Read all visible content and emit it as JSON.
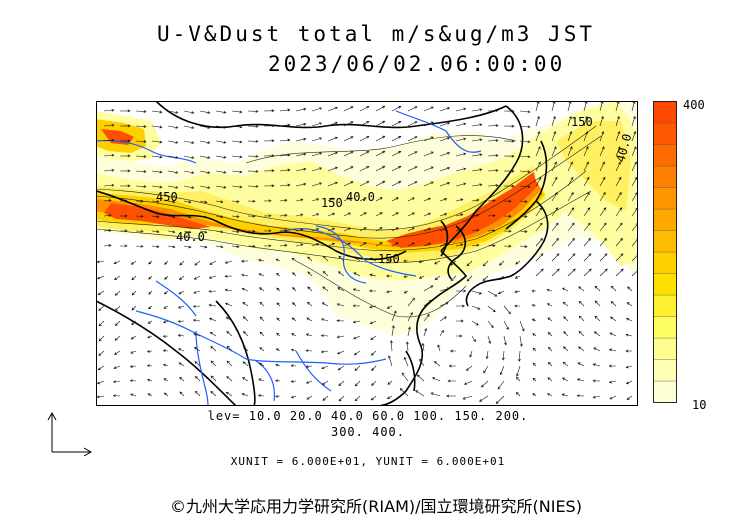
{
  "title": {
    "line1": "U-V&Dust total m/s&ug/m3 JST",
    "line2": "2023/06/02.06:00:00"
  },
  "colorbar": {
    "max_label": "400",
    "min_label": "10",
    "colors": [
      "#fefed4",
      "#fefeb4",
      "#fefe90",
      "#fefe60",
      "#fef030",
      "#fee000",
      "#fed000",
      "#febc00",
      "#fea800",
      "#fe9400",
      "#fe8000",
      "#fe6c00",
      "#fe5800",
      "#fe4800"
    ]
  },
  "contour_labels": [
    "450",
    "150",
    "40.0",
    "40.0",
    "150",
    "40.0",
    "150"
  ],
  "levels": {
    "line1": "lev= 10.0 20.0 40.0 60.0 100. 150. 200.",
    "line2": "300. 400."
  },
  "units": "XUNIT = 6.000E+01, YUNIT = 6.000E+01",
  "copyright": "©九州大学応用力学研究所(RIAM)/国立環境研究所(NIES)",
  "colors": {
    "land": "#ffffff",
    "coast": "#000000",
    "rivers": "#1f5fff",
    "dust_low": "#fefeb4",
    "dust_high": "#fe4800"
  }
}
